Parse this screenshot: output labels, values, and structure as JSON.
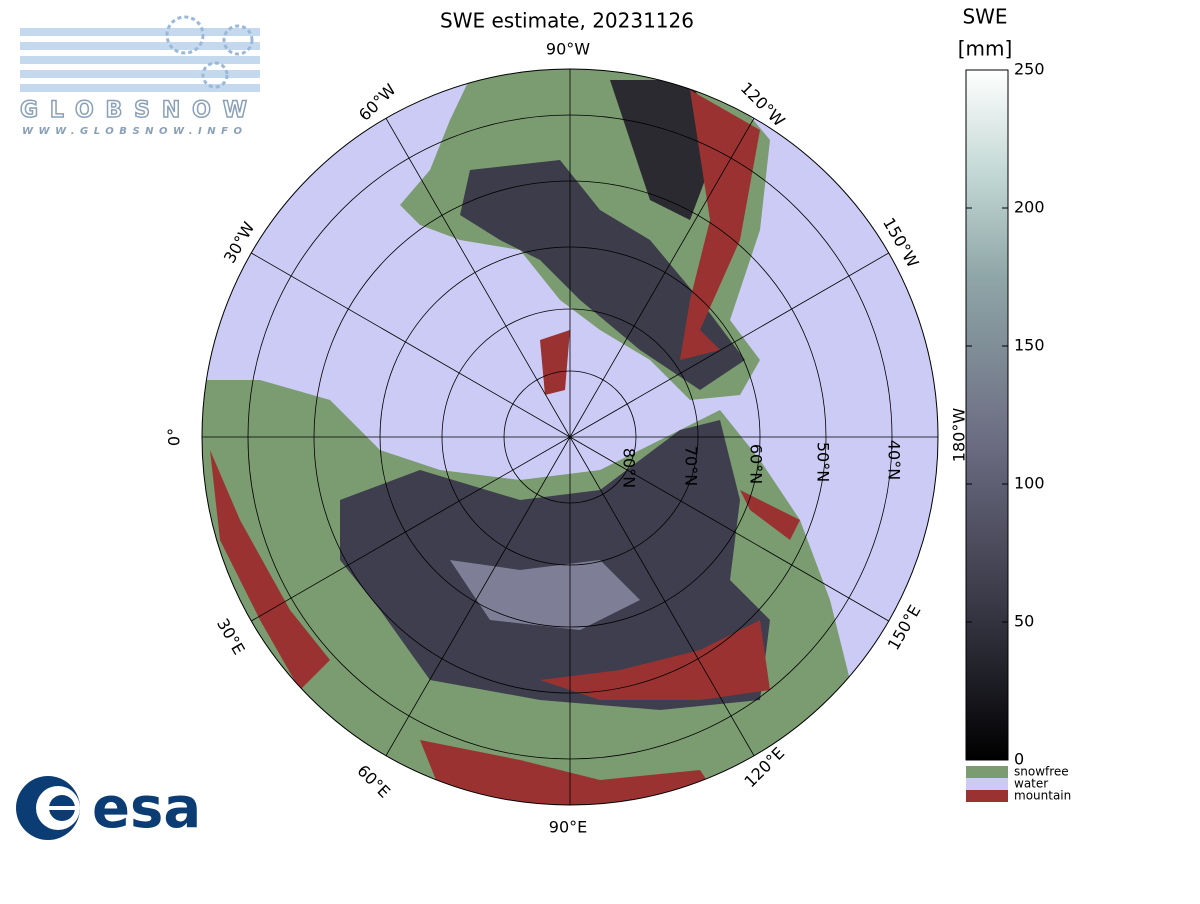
{
  "title": "SWE estimate, 20231126",
  "logo": {
    "name": "GLOBSNOW",
    "url": "WWW.GLOBSNOW.INFO"
  },
  "agency": "esa",
  "map": {
    "longitude_labels": [
      "90°W",
      "120°W",
      "150°W",
      "180°W",
      "150°E",
      "120°E",
      "90°E",
      "60°E",
      "30°E",
      "0°",
      "30°W",
      "60°W"
    ],
    "latitude_labels": [
      "80°N",
      "70°N",
      "60°N",
      "50°N",
      "40°N"
    ]
  },
  "colorbar": {
    "title": "SWE",
    "unit": "[mm]",
    "lim": [
      0,
      250
    ],
    "ticks": [
      0,
      50,
      100,
      150,
      200,
      250
    ]
  },
  "legend": [
    {
      "label": "snowfree",
      "color": "#7a9c70"
    },
    {
      "label": "water",
      "color": "#cccbf5"
    },
    {
      "label": "mountain",
      "color": "#9b3232"
    }
  ]
}
